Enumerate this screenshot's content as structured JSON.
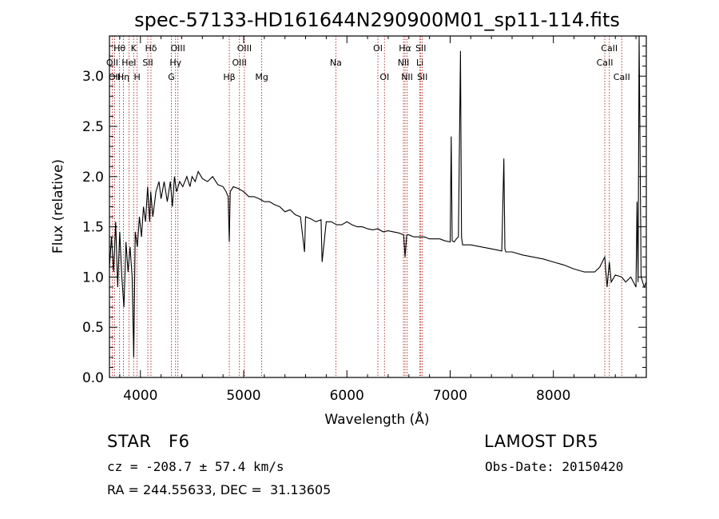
{
  "chart_data": {
    "type": "line",
    "title": "spec-57133-HD161644N290900M01_sp11-114.fits",
    "xlabel": "Wavelength (Å)",
    "ylabel": "Flux (relative)",
    "xlim": [
      3700,
      8900
    ],
    "ylim": [
      0.0,
      3.4
    ],
    "xticks": [
      4000,
      5000,
      6000,
      7000,
      8000
    ],
    "xtick_labels": [
      "4000",
      "5000",
      "6000",
      "7000",
      "8000"
    ],
    "yticks": [
      0.0,
      0.5,
      1.0,
      1.5,
      2.0,
      2.5,
      3.0
    ],
    "ytick_labels": [
      "0.0",
      "0.5",
      "1.0",
      "1.5",
      "2.0",
      "2.5",
      "3.0"
    ],
    "grid": false,
    "legend": "none",
    "colors": {
      "spectrum": "#000000",
      "line_markers": "#b22222",
      "axes": "#000000"
    },
    "series": [
      {
        "x": [
          3700,
          3720,
          3740,
          3760,
          3780,
          3800,
          3820,
          3840,
          3860,
          3880,
          3900,
          3920,
          3935,
          3950,
          3970,
          3990,
          4010,
          4030,
          4050,
          4070,
          4090,
          4100,
          4120,
          4150,
          4180,
          4200,
          4230,
          4260,
          4290,
          4310,
          4330,
          4350,
          4380,
          4410,
          4450,
          4480,
          4500,
          4530,
          4560,
          4600,
          4650,
          4700,
          4750,
          4800,
          4830,
          4850,
          4861,
          4870,
          4900,
          4950,
          5000,
          5050,
          5100,
          5150,
          5200,
          5250,
          5300,
          5350,
          5400,
          5450,
          5500,
          5550,
          5590,
          5600,
          5650,
          5700,
          5750,
          5760,
          5800,
          5850,
          5900,
          5950,
          6000,
          6050,
          6100,
          6150,
          6200,
          6250,
          6300,
          6350,
          6400,
          6450,
          6500,
          6550,
          6563,
          6580,
          6600,
          6650,
          6700,
          6750,
          6800,
          6850,
          6900,
          6950,
          7000,
          7010,
          7020,
          7040,
          7060,
          7080,
          7100,
          7110,
          7120,
          7140,
          7200,
          7300,
          7400,
          7500,
          7520,
          7530,
          7540,
          7600,
          7700,
          7800,
          7900,
          8000,
          8100,
          8200,
          8300,
          8400,
          8450,
          8498,
          8520,
          8542,
          8560,
          8600,
          8662,
          8700,
          8750,
          8800,
          8810,
          8820,
          8830,
          8850,
          8880,
          8900
        ],
        "y": [
          1.1,
          1.4,
          1.05,
          1.55,
          0.9,
          1.45,
          1.0,
          0.7,
          1.35,
          1.05,
          1.3,
          1.0,
          0.2,
          1.45,
          1.3,
          1.6,
          1.4,
          1.7,
          1.55,
          1.9,
          1.55,
          1.85,
          1.6,
          1.85,
          1.95,
          1.78,
          1.95,
          1.75,
          1.95,
          1.7,
          2.0,
          1.85,
          1.95,
          1.9,
          2.0,
          1.9,
          2.0,
          1.95,
          2.05,
          1.98,
          1.95,
          2.0,
          1.92,
          1.9,
          1.85,
          1.8,
          1.35,
          1.85,
          1.9,
          1.88,
          1.85,
          1.8,
          1.8,
          1.78,
          1.75,
          1.75,
          1.72,
          1.7,
          1.65,
          1.67,
          1.62,
          1.6,
          1.25,
          1.6,
          1.58,
          1.55,
          1.57,
          1.15,
          1.55,
          1.55,
          1.52,
          1.52,
          1.55,
          1.52,
          1.5,
          1.5,
          1.48,
          1.47,
          1.48,
          1.45,
          1.46,
          1.45,
          1.44,
          1.42,
          1.2,
          1.42,
          1.42,
          1.4,
          1.4,
          1.4,
          1.38,
          1.38,
          1.38,
          1.36,
          1.35,
          2.4,
          1.36,
          1.35,
          1.38,
          1.4,
          3.25,
          1.4,
          1.32,
          1.32,
          1.32,
          1.3,
          1.28,
          1.26,
          2.18,
          1.28,
          1.25,
          1.25,
          1.22,
          1.2,
          1.18,
          1.15,
          1.12,
          1.08,
          1.05,
          1.05,
          1.1,
          1.2,
          0.9,
          1.15,
          0.95,
          1.02,
          1.0,
          0.95,
          1.0,
          0.9,
          1.75,
          0.95,
          3.4,
          1.0,
          0.9,
          0.95
        ]
      }
    ],
    "line_markers": [
      {
        "x": 3727,
        "label": "OII",
        "row": 1
      },
      {
        "x": 3750,
        "label": "OII",
        "row": 2
      },
      {
        "x": 3798,
        "label": "Hθ",
        "row": 0
      },
      {
        "x": 3835,
        "label": "Hη",
        "row": 2
      },
      {
        "x": 3889,
        "label": "HeI",
        "row": 1
      },
      {
        "x": 3934,
        "label": "K",
        "row": 0
      },
      {
        "x": 3968,
        "label": "H",
        "row": 2
      },
      {
        "x": 4072,
        "label": "SII",
        "row": 1
      },
      {
        "x": 4102,
        "label": "Hδ",
        "row": 0
      },
      {
        "x": 4300,
        "label": "G",
        "row": 2
      },
      {
        "x": 4340,
        "label": "Hγ",
        "row": 1
      },
      {
        "x": 4363,
        "label": "OIII",
        "row": 0
      },
      {
        "x": 4861,
        "label": "Hβ",
        "row": 2
      },
      {
        "x": 4959,
        "label": "OIII",
        "row": 1
      },
      {
        "x": 5007,
        "label": "OIII",
        "row": 0
      },
      {
        "x": 5175,
        "label": "Mg",
        "row": 2
      },
      {
        "x": 5893,
        "label": "Na",
        "row": 1
      },
      {
        "x": 6300,
        "label": "OI",
        "row": 0
      },
      {
        "x": 6364,
        "label": "OI",
        "row": 2
      },
      {
        "x": 6548,
        "label": "NII",
        "row": 1
      },
      {
        "x": 6563,
        "label": "Hα",
        "row": 0
      },
      {
        "x": 6583,
        "label": "NII",
        "row": 2
      },
      {
        "x": 6707,
        "label": "Li",
        "row": 1
      },
      {
        "x": 6716,
        "label": "SII",
        "row": 0
      },
      {
        "x": 6731,
        "label": "SII",
        "row": 2
      },
      {
        "x": 8498,
        "label": "CaII",
        "row": 1
      },
      {
        "x": 8542,
        "label": "CaII",
        "row": 0
      },
      {
        "x": 8662,
        "label": "CaII",
        "row": 2
      }
    ]
  },
  "info": {
    "object_class": "STAR",
    "subclass": "F6",
    "survey": "LAMOST DR5",
    "redshift": "cz = -208.7 ± 57.4 km/s",
    "obs_date": "Obs-Date: 20150420",
    "coords": "RA = 244.55633, DEC =  31.13605"
  }
}
